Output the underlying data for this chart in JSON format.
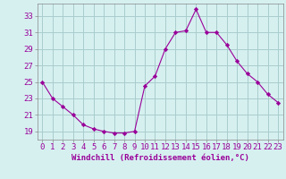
{
  "hours": [
    0,
    1,
    2,
    3,
    4,
    5,
    6,
    7,
    8,
    9,
    10,
    11,
    12,
    13,
    14,
    15,
    16,
    17,
    18,
    19,
    20,
    21,
    22,
    23
  ],
  "values": [
    25.0,
    23.0,
    22.0,
    21.0,
    19.8,
    19.3,
    19.0,
    18.8,
    18.8,
    19.0,
    24.5,
    25.7,
    29.0,
    31.0,
    31.2,
    33.8,
    31.0,
    31.0,
    29.5,
    27.5,
    26.0,
    25.0,
    23.5,
    22.5
  ],
  "line_color": "#990099",
  "marker": "D",
  "bg_color": "#d6f0f0",
  "grid_color": "#aacccc",
  "xlabel": "Windchill (Refroidissement éolien,°C)",
  "yticks": [
    19,
    21,
    23,
    25,
    27,
    29,
    31,
    33
  ],
  "ylim": [
    18.0,
    34.5
  ],
  "xlim": [
    -0.5,
    23.5
  ],
  "tick_color": "#990099",
  "label_color": "#990099",
  "xlabel_fontsize": 6.5,
  "tick_fontsize": 6.5
}
